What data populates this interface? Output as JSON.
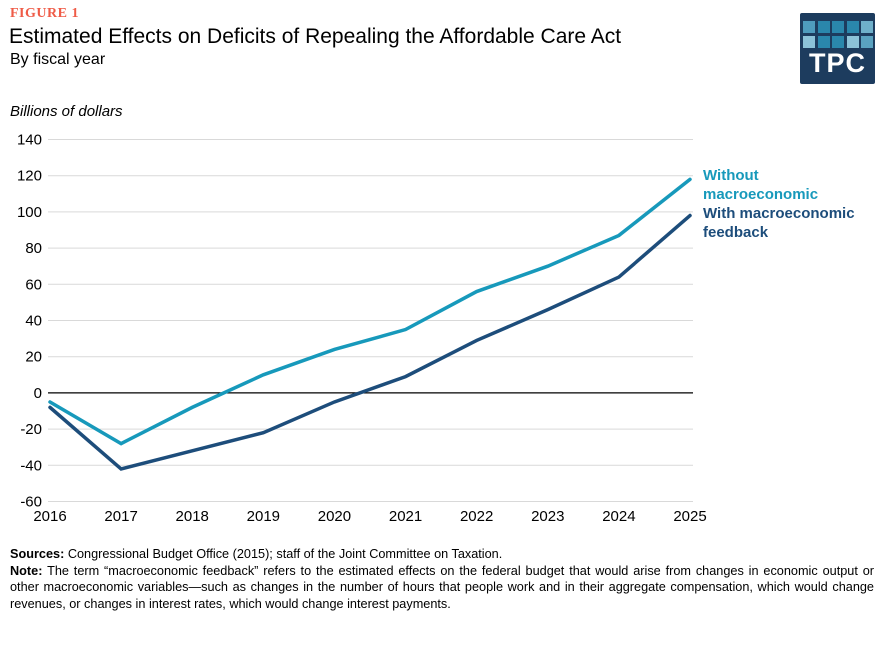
{
  "figure_label": "FIGURE 1",
  "title": "Estimated Effects on Deficits of Repealing the Affordable Care Act",
  "subtitle": "By fiscal year",
  "y_axis_title": "Billions of dollars",
  "logo": {
    "text": "TPC",
    "background": "#1d3c5e",
    "squares": [
      "#4f9cbd",
      "#2a87ac",
      "#2a87ac",
      "#2a87ac",
      "#6fb0ca",
      "#8cc2d8",
      "#2a87ac",
      "#2a87ac",
      "#8cc2d8",
      "#5aa2c0"
    ]
  },
  "legend": [
    {
      "label": "Without macroeconomic",
      "color": "#1799bb"
    },
    {
      "label": "With macroeconomic feedback",
      "color": "#1d4d7b"
    }
  ],
  "footer": {
    "sources_label": "Sources:",
    "sources_text": "Congressional Budget Office (2015); staff of the Joint Committee on Taxation.",
    "note_label": "Note:",
    "note_text": "The term “macroeconomic feedback” refers to the estimated effects on the federal budget that would arise from changes in economic output or other macroeconomic variables—such as changes in the number of hours that people work and in their aggregate compensation, which would change revenues, or changes in interest rates, which would change interest payments."
  },
  "chart_data": {
    "type": "line",
    "title": "Estimated Effects on Deficits of Repealing the Affordable Care Act",
    "subtitle": "By fiscal year",
    "xlabel": "",
    "ylabel": "Billions of dollars",
    "categories": [
      "2016",
      "2017",
      "2018",
      "2019",
      "2020",
      "2021",
      "2022",
      "2023",
      "2024",
      "2025"
    ],
    "series": [
      {
        "name": "Without macroeconomic feedback",
        "color": "#1799bb",
        "values": [
          -5,
          -28,
          -8,
          10,
          24,
          35,
          56,
          70,
          87,
          118
        ]
      },
      {
        "name": "With macroeconomic feedback",
        "color": "#1d4d7b",
        "values": [
          -8,
          -42,
          -32,
          -22,
          -5,
          9,
          29,
          46,
          64,
          98
        ]
      }
    ],
    "ylim": [
      -60,
      140
    ],
    "y_tick_step": 20,
    "gridlines": true,
    "zero_line": true,
    "grid_color": "#d9d9d9",
    "legend_position": "right of line ends"
  }
}
